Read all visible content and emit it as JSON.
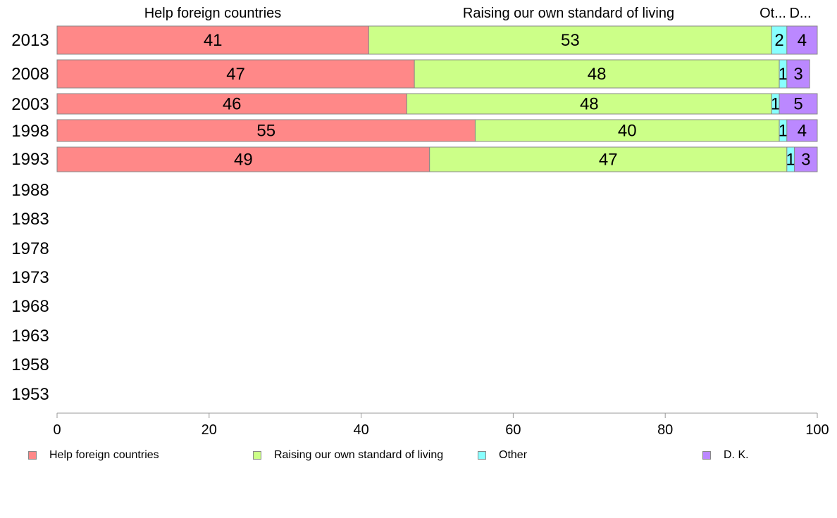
{
  "chart_data": {
    "type": "bar",
    "orientation": "horizontal",
    "stacked": true,
    "categories": [
      "2013",
      "2008",
      "2003",
      "1998",
      "1993",
      "1988",
      "1983",
      "1978",
      "1973",
      "1968",
      "1963",
      "1958",
      "1953"
    ],
    "series": [
      {
        "name": "Help foreign countries",
        "color": "#ff8888",
        "values": [
          41,
          47,
          46,
          55,
          49,
          null,
          null,
          null,
          null,
          null,
          null,
          null,
          null
        ]
      },
      {
        "name": "Raising our own standard of living",
        "color": "#ccff88",
        "values": [
          53,
          48,
          48,
          40,
          47,
          null,
          null,
          null,
          null,
          null,
          null,
          null,
          null
        ]
      },
      {
        "name": "Other",
        "color": "#88ffff",
        "values": [
          2,
          1,
          1,
          1,
          1,
          null,
          null,
          null,
          null,
          null,
          null,
          null,
          null
        ]
      },
      {
        "name": "D. K.",
        "color": "#bb88ff",
        "values": [
          4,
          3,
          5,
          4,
          3,
          null,
          null,
          null,
          null,
          null,
          null,
          null,
          null
        ]
      }
    ],
    "column_headers": [
      "Help foreign countries",
      "Raising our own standard of living",
      "Ot...",
      "D..."
    ],
    "xlim": [
      0,
      100
    ],
    "xticks": [
      "0",
      "20",
      "40",
      "60",
      "80",
      "100"
    ],
    "grid": false,
    "legend_position": "bottom"
  }
}
